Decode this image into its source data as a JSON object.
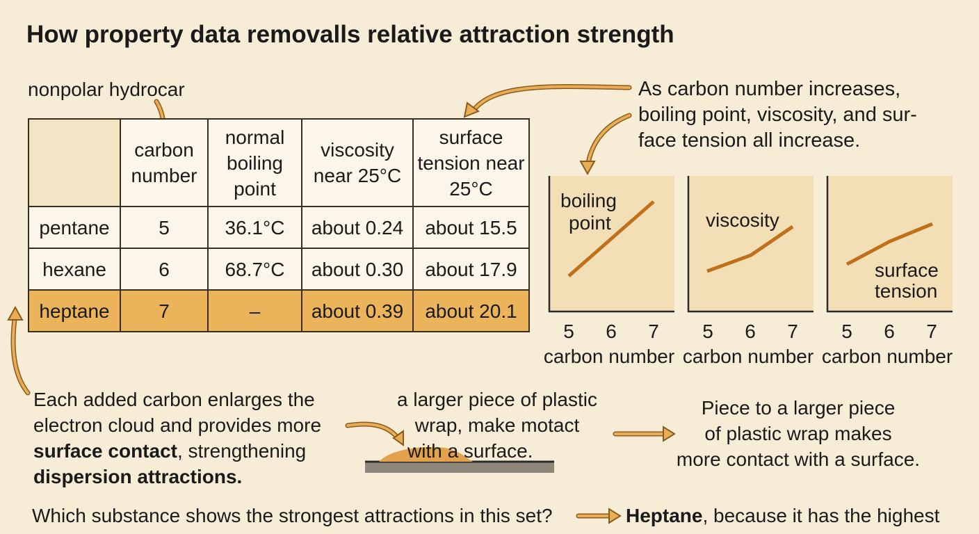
{
  "title": "How property data removalls relative attraction strength",
  "table_note": "nonpolar hydrocar",
  "table": {
    "header": [
      "carbon number",
      "normal boiling point",
      "viscosity near 25°C",
      "surface tension near 25°C"
    ],
    "rows": [
      [
        "pentane",
        "5",
        "36.1°C",
        "about 0.24",
        "about 15.5"
      ],
      [
        "hexane",
        "6",
        "68.7°C",
        "about 0.30",
        "about 17.9"
      ],
      [
        "heptane",
        "7",
        "–",
        "about 0.39",
        "about 20.1"
      ]
    ]
  },
  "callout": {
    "lines": [
      "As carbon number increases,",
      "boiling point, viscosity, and sur-",
      "face tension all increase."
    ]
  },
  "mini_charts": {
    "panels": [
      {
        "label_lines": [
          "boiling",
          "point"
        ]
      },
      {
        "label_lines": [
          "viscosity"
        ]
      },
      {
        "label_lines": [
          "surface",
          "tension"
        ]
      }
    ],
    "xticks": [
      "5",
      "6",
      "7"
    ],
    "xlabel": "carbon number"
  },
  "explanation": {
    "line1": "Each added carbon enlarges the",
    "line2": "electron cloud and provides more",
    "bold1": "surface contact",
    "line3_rest": ", strengthening",
    "bold2": "dispersion attractions."
  },
  "plastic_small": {
    "lines": [
      "a larger piece of plastic",
      "wrap, make motact",
      "with a surface."
    ]
  },
  "plastic_large": {
    "lines": [
      "Piece to a larger piece",
      "of plastic wrap makes",
      "more contact with a surface."
    ]
  },
  "question": {
    "text": "Which substance shows the strongest attractions in this set?",
    "answer_bold": "Heptane",
    "answer_rest": ", because it has the highest"
  }
}
